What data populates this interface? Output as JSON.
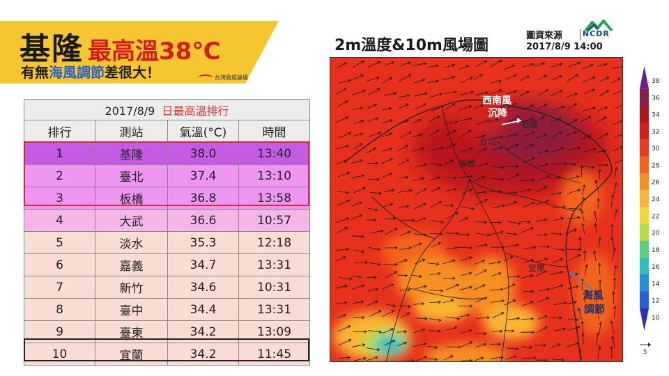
{
  "title": {
    "city": "基隆",
    "rest": "最高溫38℃",
    "sub_part1": "有無",
    "sub_highlight": "海風調節",
    "sub_part2": "差很大！",
    "brand": "台灣颱風論壇"
  },
  "table": {
    "caption_date": "2017/8/9",
    "caption_title": "日最高溫排行",
    "headers": [
      "排行",
      "測站",
      "氣溫(°C)",
      "時間"
    ],
    "rows": [
      [
        "1",
        "基隆",
        "38.0",
        "13:40"
      ],
      [
        "2",
        "臺北",
        "37.4",
        "13:10"
      ],
      [
        "3",
        "板橋",
        "36.8",
        "13:58"
      ],
      [
        "4",
        "大武",
        "36.6",
        "10:57"
      ],
      [
        "5",
        "淡水",
        "35.3",
        "12:18"
      ],
      [
        "6",
        "嘉義",
        "34.7",
        "13:31"
      ],
      [
        "7",
        "新竹",
        "34.6",
        "10:31"
      ],
      [
        "8",
        "臺中",
        "34.4",
        "13:31"
      ],
      [
        "9",
        "臺東",
        "34.2",
        "13:09"
      ],
      [
        "10",
        "宜蘭",
        "34.2",
        "11:45"
      ]
    ]
  },
  "map": {
    "title": "2m溫度&10m風場圖",
    "source_label": "圖資來源",
    "source_time": "2017/8/9 14:00",
    "ncdr_logo_text": "NCDR",
    "labels": {
      "keelung": "基隆",
      "taipei": "台北",
      "banqiao": "板橋",
      "yilan": "宜蘭",
      "sw_wind_1": "西南風",
      "sw_wind_2": "沉降",
      "sea_breeze_1": "海風",
      "sea_breeze_2": "調節"
    },
    "field_color": "#e8311c",
    "colorbar": {
      "ticks": [
        "38",
        "36",
        "34",
        "32",
        "30",
        "28",
        "26",
        "24",
        "22",
        "20",
        "18",
        "16",
        "14",
        "12",
        "10"
      ],
      "colors": [
        "#6b1f8a",
        "#8a1f4e",
        "#b01818",
        "#d6201a",
        "#ec3a1a",
        "#f3631c",
        "#f78e22",
        "#f9b432",
        "#f7d63a",
        "#b9dc46",
        "#5fcf7a",
        "#2bbfc0",
        "#2a8fd8",
        "#2a5fd8",
        "#2a33b8"
      ],
      "wind_scale_label": "5"
    }
  }
}
